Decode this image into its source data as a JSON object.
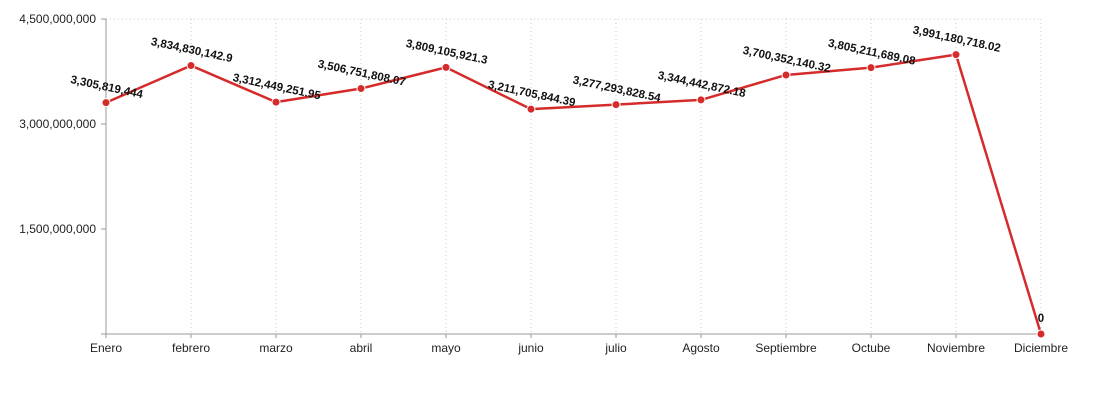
{
  "chart_data": {
    "type": "line",
    "title": "",
    "xlabel": "",
    "ylabel": "",
    "categories": [
      "Enero",
      "febrero",
      "marzo",
      "abril",
      "mayo",
      "junio",
      "julio",
      "Agosto",
      "Septiembre",
      "Octube",
      "Noviembre",
      "Diciembre"
    ],
    "series": [
      {
        "values": [
          3305819444,
          3834830142.9,
          3312449251.95,
          3506751808.07,
          3809105921.3,
          3211705844.39,
          3277293828.54,
          3344442872.18,
          3700352140.32,
          3805211689.08,
          3991180718.02,
          0
        ],
        "labels": [
          "3,305,819,444",
          "3,834,830,142.9",
          "3,312,449,251.95",
          "3,506,751,808.07",
          "3,809,105,921.3",
          "3,211,705,844.39",
          "3,277,293,828.54",
          "3,344,442,872.18",
          "3,700,352,140.32",
          "3,805,211,689.08",
          "3,991,180,718.02",
          "0"
        ],
        "color": "#d62b2b"
      }
    ],
    "ylim": [
      0,
      4500000000
    ],
    "yticks": [
      1500000000,
      3000000000,
      4500000000
    ],
    "ytick_labels": [
      "1,500,000,000",
      "3,000,000,000",
      "4,500,000,000"
    ],
    "grid": {
      "vertical": true,
      "horizontal_top": true
    },
    "legend": "none"
  }
}
